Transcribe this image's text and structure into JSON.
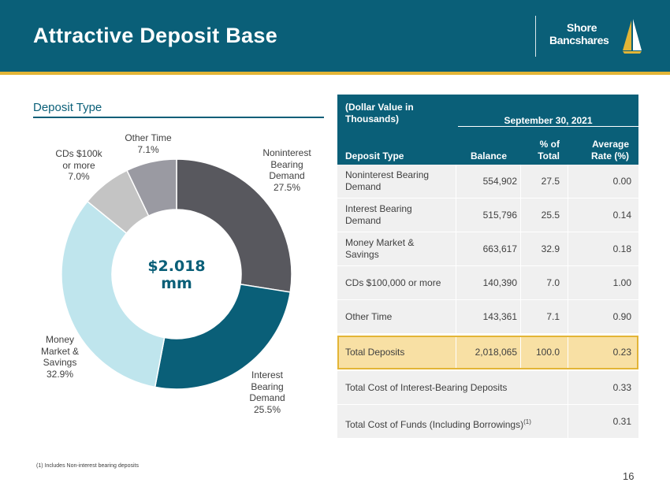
{
  "header": {
    "title": "Attractive Deposit Base",
    "logo_line1": "Shore",
    "logo_line2": "Bancshares"
  },
  "section_title": "Deposit Type",
  "chart_data": {
    "type": "pie",
    "center_label": "$2.018 mm",
    "slices": [
      {
        "label_lines": [
          "Noninterest",
          "Bearing",
          "Demand",
          "27.5%"
        ],
        "value": 27.5,
        "color": "#58585e"
      },
      {
        "label_lines": [
          "Interest",
          "Bearing",
          "Demand",
          "25.5%"
        ],
        "value": 25.5,
        "color": "#0a5f78"
      },
      {
        "label_lines": [
          "Money",
          "Market &",
          "Savings",
          "32.9%"
        ],
        "value": 32.9,
        "color": "#bfe5ed"
      },
      {
        "label_lines": [
          "CDs $100k",
          "or more",
          "7.0%"
        ],
        "value": 7.0,
        "color": "#c4c4c4"
      },
      {
        "label_lines": [
          "Other Time",
          "7.1%"
        ],
        "value": 7.1,
        "color": "#9a9aa2"
      }
    ]
  },
  "table": {
    "header_group": "(Dollar Value in Thousands)",
    "header_date": "September 30, 2021",
    "col_type": "Deposit Type",
    "col_balance": "Balance",
    "col_pct_1": "% of",
    "col_pct_2": "Total",
    "col_rate_1": "Average",
    "col_rate_2": "Rate (%)",
    "rows": [
      {
        "type": "Noninterest Bearing Demand",
        "balance": "554,902",
        "pct": "27.5",
        "rate": "0.00"
      },
      {
        "type": "Interest Bearing Demand",
        "balance": "515,796",
        "pct": "25.5",
        "rate": "0.14"
      },
      {
        "type": "Money Market & Savings",
        "balance": "663,617",
        "pct": "32.9",
        "rate": "0.18"
      },
      {
        "type": "CDs $100,000 or more",
        "balance": "140,390",
        "pct": "7.0",
        "rate": "1.00"
      },
      {
        "type": "Other Time",
        "balance": "143,361",
        "pct": "7.1",
        "rate": "0.90"
      }
    ],
    "total": {
      "type": "Total Deposits",
      "balance": "2,018,065",
      "pct": "100.0",
      "rate": "0.23"
    },
    "cost_interest_label": "Total Cost of Interest-Bearing Deposits",
    "cost_interest_value": "0.33",
    "cost_funds_label": "Total Cost of Funds (Including Borrowings)",
    "cost_funds_note": "(1)",
    "cost_funds_value": "0.31"
  },
  "footnote": "(1) Includes Non-interest bearing deposits",
  "page_number": "16"
}
